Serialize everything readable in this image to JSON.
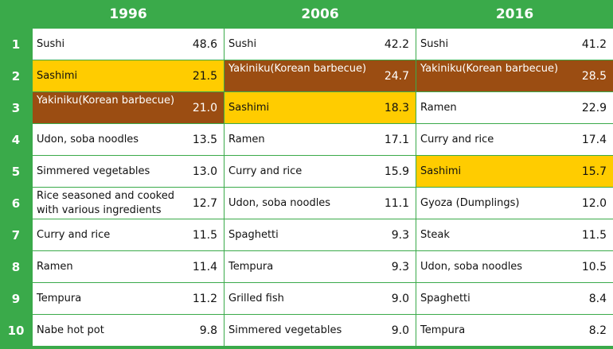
{
  "colors": {
    "header_bg": "#3aaa4a",
    "sashimi": "#ffcc00",
    "yakiniku": "#9b4d12"
  },
  "years": [
    "1996",
    "2006",
    "2016"
  ],
  "ranks": [
    "1",
    "2",
    "3",
    "4",
    "5",
    "6",
    "7",
    "8",
    "9",
    "10"
  ],
  "columns": [
    {
      "rows": [
        {
          "name": "Sushi",
          "value": "48.6"
        },
        {
          "name": "Sashimi",
          "value": "21.5",
          "highlight": "yellow"
        },
        {
          "name": "Yakiniku(Korean barbecue)",
          "value": "21.0",
          "highlight": "brown"
        },
        {
          "name": "Udon, soba noodles",
          "value": "13.5"
        },
        {
          "name": "Simmered vegetables",
          "value": "13.0"
        },
        {
          "name": "Rice seasoned and cooked with various ingredients",
          "value": "12.7"
        },
        {
          "name": "Curry and rice",
          "value": "11.5"
        },
        {
          "name": "Ramen",
          "value": "11.4"
        },
        {
          "name": "Tempura",
          "value": "11.2"
        },
        {
          "name": "Nabe hot pot",
          "value": "9.8"
        }
      ]
    },
    {
      "rows": [
        {
          "name": "Sushi",
          "value": "42.2"
        },
        {
          "name": "Yakiniku(Korean barbecue)",
          "value": "24.7",
          "highlight": "brown"
        },
        {
          "name": "Sashimi",
          "value": "18.3",
          "highlight": "yellow"
        },
        {
          "name": "Ramen",
          "value": "17.1"
        },
        {
          "name": "Curry and rice",
          "value": "15.9"
        },
        {
          "name": "Udon, soba noodles",
          "value": "11.1"
        },
        {
          "name": "Spaghetti",
          "value": "9.3"
        },
        {
          "name": "Tempura",
          "value": "9.3"
        },
        {
          "name": "Grilled fish",
          "value": "9.0"
        },
        {
          "name": "Simmered vegetables",
          "value": "9.0"
        }
      ]
    },
    {
      "rows": [
        {
          "name": "Sushi",
          "value": "41.2"
        },
        {
          "name": "Yakiniku(Korean barbecue)",
          "value": "28.5",
          "highlight": "brown"
        },
        {
          "name": "Ramen",
          "value": "22.9"
        },
        {
          "name": "Curry and rice",
          "value": "17.4"
        },
        {
          "name": "Sashimi",
          "value": "15.7",
          "highlight": "yellow"
        },
        {
          "name": "Gyoza (Dumplings)",
          "value": "12.0"
        },
        {
          "name": "Steak",
          "value": "11.5"
        },
        {
          "name": "Udon, soba noodles",
          "value": "10.5"
        },
        {
          "name": "Spaghetti",
          "value": "8.4"
        },
        {
          "name": "Tempura",
          "value": "8.2"
        }
      ]
    }
  ]
}
